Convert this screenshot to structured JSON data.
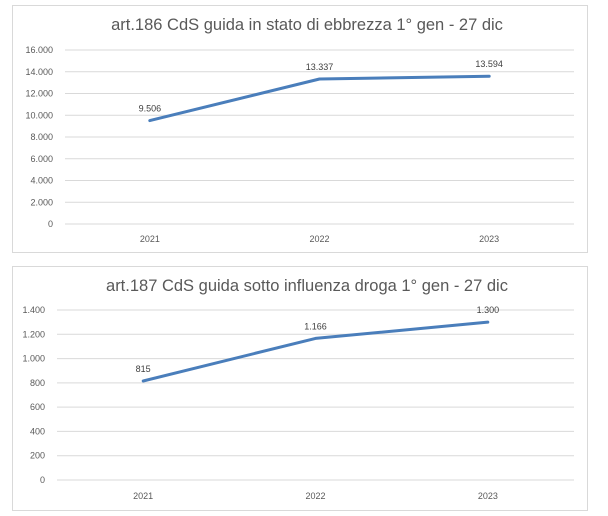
{
  "chart_data": [
    {
      "type": "line",
      "title": "art.186 CdS guida in stato di ebbrezza 1° gen - 27 dic",
      "categories": [
        "2021",
        "2022",
        "2023"
      ],
      "series": [
        {
          "values": [
            9506,
            13337,
            13594
          ],
          "labels": [
            "9.506",
            "13.337",
            "13.594"
          ]
        }
      ],
      "ylim": [
        0,
        16000
      ],
      "yticks": [
        0,
        2000,
        4000,
        6000,
        8000,
        10000,
        12000,
        14000,
        16000
      ],
      "ytick_labels": [
        "0",
        "2.000",
        "4.000",
        "6.000",
        "8.000",
        "10.000",
        "12.000",
        "14.000",
        "16.000"
      ],
      "grid": true,
      "color": "#4a7ebb"
    },
    {
      "type": "line",
      "title": "art.187 CdS guida sotto influenza droga 1° gen - 27 dic",
      "categories": [
        "2021",
        "2022",
        "2023"
      ],
      "series": [
        {
          "values": [
            815,
            1166,
            1300
          ],
          "labels": [
            "815",
            "1.166",
            "1.300"
          ]
        }
      ],
      "ylim": [
        0,
        1400
      ],
      "yticks": [
        0,
        200,
        400,
        600,
        800,
        1000,
        1200,
        1400
      ],
      "ytick_labels": [
        "0",
        "200",
        "400",
        "600",
        "800",
        "1.000",
        "1.200",
        "1.400"
      ],
      "grid": true,
      "color": "#4a7ebb"
    }
  ]
}
